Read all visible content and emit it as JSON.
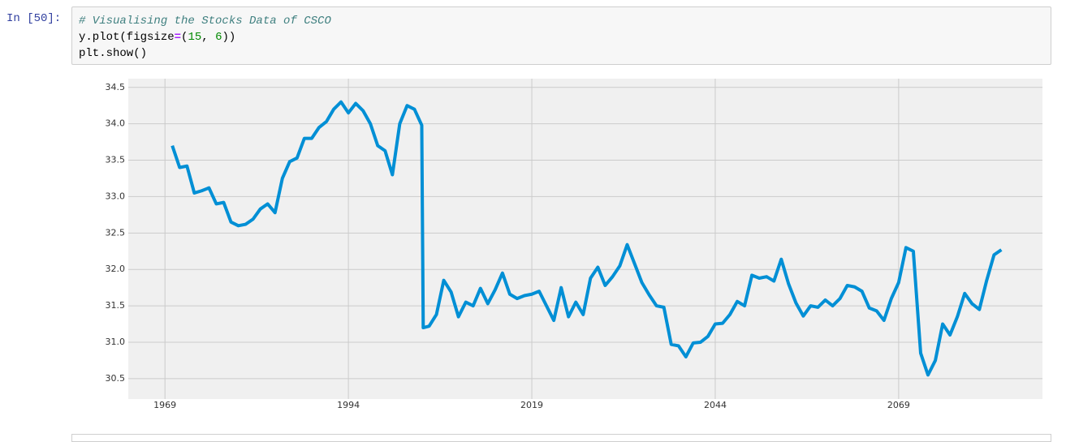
{
  "cell": {
    "prompt": "In [50]:",
    "code": [
      [
        "# Visualising the Stocks Data of CSCO"
      ],
      [
        "y.plot(figsize",
        "=",
        "(",
        "15",
        ", ",
        "6",
        "))"
      ],
      [
        "plt.show()"
      ]
    ]
  },
  "chart_data": {
    "type": "line",
    "color": "#008fd5",
    "grid": true,
    "x": [
      1970,
      1971,
      1972,
      1973,
      1974,
      1975,
      1976,
      1977,
      1978,
      1979,
      1980,
      1981,
      1982,
      1983,
      1984,
      1985,
      1986,
      1987,
      1988,
      1989,
      1990,
      1991,
      1992,
      1993,
      1994,
      1995,
      1996,
      1997,
      1998,
      1999,
      2000,
      2001,
      2002,
      2003,
      2004,
      2004.2,
      2005,
      2006,
      2007,
      2008,
      2009,
      2010,
      2011,
      2012,
      2013,
      2014,
      2015,
      2016,
      2017,
      2018,
      2019,
      2020,
      2021,
      2022,
      2023,
      2024,
      2025,
      2026,
      2027,
      2028,
      2029,
      2030,
      2031,
      2032,
      2033,
      2034,
      2035,
      2036,
      2037,
      2038,
      2039,
      2040,
      2041,
      2042,
      2043,
      2044,
      2045,
      2046,
      2047,
      2048,
      2049,
      2050,
      2051,
      2052,
      2053,
      2054,
      2055,
      2056,
      2057,
      2058,
      2059,
      2060,
      2061,
      2062,
      2063,
      2064,
      2065,
      2066,
      2067,
      2068,
      2069,
      2070,
      2071,
      2072,
      2073,
      2074,
      2075,
      2076,
      2077,
      2078,
      2079,
      2080,
      2081,
      2082,
      2083
    ],
    "values": [
      33.7,
      33.4,
      33.42,
      33.05,
      33.08,
      33.12,
      32.9,
      32.92,
      32.65,
      32.6,
      32.62,
      32.69,
      32.83,
      32.9,
      32.78,
      33.25,
      33.48,
      33.53,
      33.8,
      33.8,
      33.95,
      34.03,
      34.2,
      34.3,
      34.15,
      34.28,
      34.18,
      34.0,
      33.7,
      33.63,
      33.3,
      34.0,
      34.25,
      34.2,
      33.98,
      31.2,
      31.22,
      31.38,
      31.85,
      31.69,
      31.35,
      31.55,
      31.5,
      31.74,
      31.53,
      31.72,
      31.95,
      31.66,
      31.6,
      31.64,
      31.66,
      31.7,
      31.5,
      31.3,
      31.75,
      31.35,
      31.55,
      31.38,
      31.88,
      32.03,
      31.78,
      31.9,
      32.05,
      32.34,
      32.08,
      31.82,
      31.65,
      31.5,
      31.48,
      30.97,
      30.95,
      30.8,
      30.99,
      31.0,
      31.08,
      31.25,
      31.26,
      31.38,
      31.56,
      31.5,
      31.92,
      31.88,
      31.9,
      31.84,
      32.14,
      31.8,
      31.54,
      31.36,
      31.5,
      31.48,
      31.58,
      31.5,
      31.6,
      31.78,
      31.76,
      31.7,
      31.47,
      31.43,
      31.3,
      31.6,
      31.82,
      32.3,
      32.25,
      30.85,
      30.55,
      30.75,
      31.25,
      31.1,
      31.35,
      31.67,
      31.53,
      31.45,
      31.85,
      32.2,
      32.27
    ],
    "xlim": [
      1964,
      2088.6
    ],
    "xticks": [
      1969,
      1994,
      2019,
      2044,
      2069
    ],
    "ylim": [
      30.22,
      34.62
    ],
    "yticks": [
      30.5,
      {
        "value": 31,
        "label": "31.0"
      },
      31.5,
      {
        "value": 32,
        "label": "32.0"
      },
      32.5,
      {
        "value": 33,
        "label": "33.0"
      },
      33.5,
      {
        "value": 34,
        "label": "34.0"
      },
      34.5
    ]
  }
}
